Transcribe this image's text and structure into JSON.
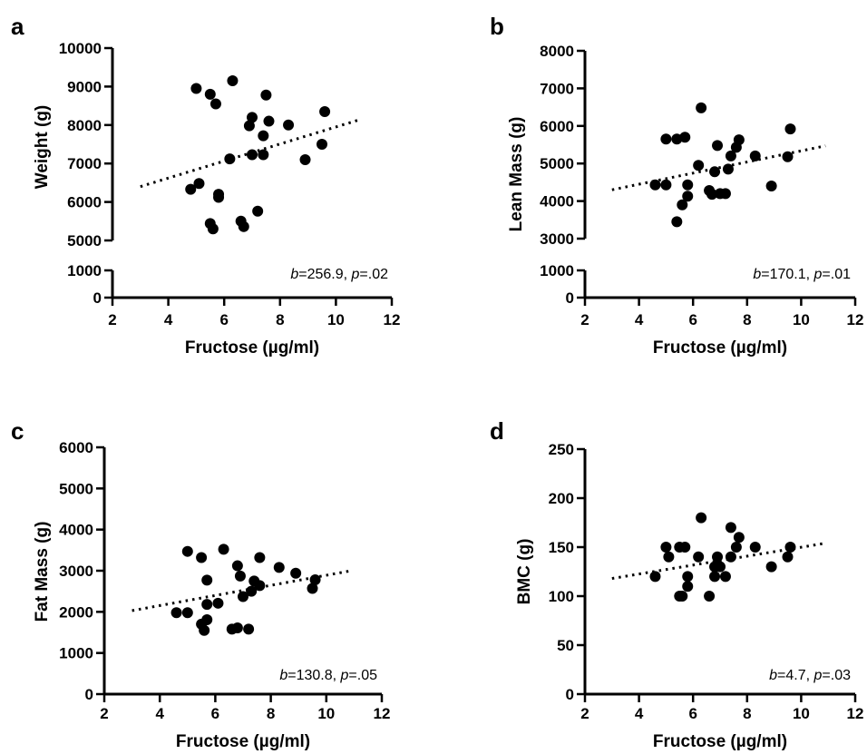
{
  "chart_data": [
    {
      "type": "scatter",
      "panel": "a",
      "xlabel": "Fructose (µg/ml)",
      "ylabel": "Weight (g)",
      "xlim": [
        2,
        12
      ],
      "x_ticks": [
        "2",
        "4",
        "6",
        "8",
        "10",
        "12"
      ],
      "y_segments": [
        {
          "range": [
            5000,
            10000
          ],
          "ticks": [
            "5000",
            "6000",
            "7000",
            "8000",
            "9000",
            "10000"
          ]
        },
        {
          "range": [
            0,
            1000
          ],
          "ticks": [
            "0",
            "1000"
          ]
        }
      ],
      "stat_b": "256.9",
      "stat_p": ".02",
      "trend": [
        [
          3,
          6400
        ],
        [
          10.9,
          8150
        ]
      ],
      "points": [
        [
          5.0,
          8950
        ],
        [
          5.5,
          8800
        ],
        [
          5.7,
          8550
        ],
        [
          6.3,
          9150
        ],
        [
          7.5,
          8780
        ],
        [
          7.0,
          8200
        ],
        [
          6.9,
          7980
        ],
        [
          7.6,
          8100
        ],
        [
          8.3,
          8000
        ],
        [
          9.6,
          8350
        ],
        [
          7.4,
          7720
        ],
        [
          9.5,
          7500
        ],
        [
          6.2,
          7120
        ],
        [
          7.0,
          7230
        ],
        [
          7.4,
          7230
        ],
        [
          8.9,
          7100
        ],
        [
          4.8,
          6330
        ],
        [
          5.1,
          6480
        ],
        [
          5.8,
          6200
        ],
        [
          5.8,
          6120
        ],
        [
          7.2,
          5760
        ],
        [
          5.5,
          5440
        ],
        [
          5.6,
          5300
        ],
        [
          6.6,
          5500
        ],
        [
          6.7,
          5360
        ]
      ]
    },
    {
      "type": "scatter",
      "panel": "b",
      "xlabel": "Fructose (µg/ml)",
      "ylabel": "Lean Mass (g)",
      "xlim": [
        2,
        12
      ],
      "x_ticks": [
        "2",
        "4",
        "6",
        "8",
        "10",
        "12"
      ],
      "y_segments": [
        {
          "range": [
            3000,
            8000
          ],
          "ticks": [
            "3000",
            "4000",
            "5000",
            "6000",
            "7000",
            "8000"
          ]
        },
        {
          "range": [
            0,
            1000
          ],
          "ticks": [
            "0",
            "1000"
          ]
        }
      ],
      "stat_b": "170.1",
      "stat_p": ".01",
      "trend": [
        [
          3,
          4300
        ],
        [
          10.9,
          5470
        ]
      ],
      "points": [
        [
          6.3,
          6480
        ],
        [
          5.0,
          5650
        ],
        [
          5.4,
          5650
        ],
        [
          5.7,
          5700
        ],
        [
          7.7,
          5630
        ],
        [
          6.9,
          5480
        ],
        [
          7.6,
          5430
        ],
        [
          9.6,
          5920
        ],
        [
          8.3,
          5200
        ],
        [
          7.4,
          5200
        ],
        [
          9.5,
          5180
        ],
        [
          6.2,
          4950
        ],
        [
          6.8,
          4780
        ],
        [
          7.3,
          4850
        ],
        [
          4.6,
          4430
        ],
        [
          5.0,
          4430
        ],
        [
          5.8,
          4430
        ],
        [
          6.6,
          4280
        ],
        [
          6.7,
          4180
        ],
        [
          7.0,
          4200
        ],
        [
          7.2,
          4200
        ],
        [
          8.9,
          4400
        ],
        [
          5.8,
          4130
        ],
        [
          5.6,
          3900
        ],
        [
          5.4,
          3450
        ]
      ]
    },
    {
      "type": "scatter",
      "panel": "c",
      "xlabel": "Fructose (µg/ml)",
      "ylabel": "Fat Mass (g)",
      "xlim": [
        2,
        12
      ],
      "x_ticks": [
        "2",
        "4",
        "6",
        "8",
        "10",
        "12"
      ],
      "y_segments": [
        {
          "range": [
            0,
            6000
          ],
          "ticks": [
            "0",
            "1000",
            "2000",
            "3000",
            "4000",
            "5000",
            "6000"
          ]
        }
      ],
      "stat_b": "130.8",
      "stat_p": ".05",
      "trend": [
        [
          3,
          2030
        ],
        [
          10.9,
          3000
        ]
      ],
      "points": [
        [
          5.0,
          3470
        ],
        [
          6.3,
          3520
        ],
        [
          5.5,
          3320
        ],
        [
          7.6,
          3320
        ],
        [
          6.8,
          3120
        ],
        [
          8.3,
          3080
        ],
        [
          6.9,
          2870
        ],
        [
          8.9,
          2940
        ],
        [
          5.7,
          2770
        ],
        [
          7.4,
          2750
        ],
        [
          9.6,
          2780
        ],
        [
          7.6,
          2640
        ],
        [
          9.5,
          2570
        ],
        [
          7.3,
          2500
        ],
        [
          7.0,
          2370
        ],
        [
          5.7,
          2180
        ],
        [
          6.1,
          2210
        ],
        [
          4.6,
          1980
        ],
        [
          5.0,
          1980
        ],
        [
          5.7,
          1810
        ],
        [
          5.5,
          1700
        ],
        [
          5.6,
          1550
        ],
        [
          6.6,
          1580
        ],
        [
          6.8,
          1610
        ],
        [
          7.2,
          1580
        ]
      ]
    },
    {
      "type": "scatter",
      "panel": "d",
      "xlabel": "Fructose (µg/ml)",
      "ylabel": "BMC (g)",
      "xlim": [
        2,
        12
      ],
      "x_ticks": [
        "2",
        "4",
        "6",
        "8",
        "10",
        "12"
      ],
      "y_segments": [
        {
          "range": [
            0,
            250
          ],
          "ticks": [
            "0",
            "50",
            "100",
            "150",
            "200",
            "250"
          ]
        }
      ],
      "stat_b": "4.7",
      "stat_p": ".03",
      "trend": [
        [
          3,
          118
        ],
        [
          10.9,
          154
        ]
      ],
      "points": [
        [
          6.3,
          180
        ],
        [
          7.4,
          170
        ],
        [
          7.7,
          160
        ],
        [
          5.0,
          150
        ],
        [
          5.5,
          150
        ],
        [
          5.7,
          150
        ],
        [
          7.6,
          150
        ],
        [
          8.3,
          150
        ],
        [
          9.6,
          150
        ],
        [
          5.1,
          140
        ],
        [
          6.2,
          140
        ],
        [
          6.9,
          140
        ],
        [
          7.4,
          140
        ],
        [
          9.5,
          140
        ],
        [
          6.8,
          130
        ],
        [
          7.0,
          130
        ],
        [
          8.9,
          130
        ],
        [
          4.6,
          120
        ],
        [
          5.8,
          120
        ],
        [
          6.8,
          120
        ],
        [
          7.2,
          120
        ],
        [
          5.8,
          110
        ],
        [
          5.5,
          100
        ],
        [
          5.6,
          100
        ],
        [
          6.6,
          100
        ]
      ]
    }
  ]
}
